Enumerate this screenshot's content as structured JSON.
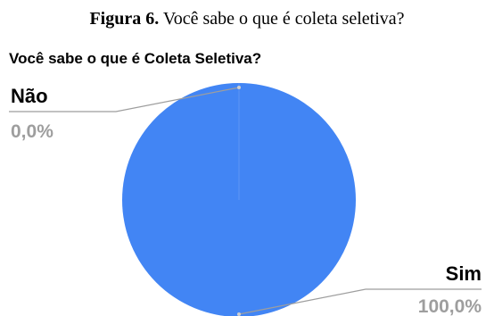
{
  "figure_caption": {
    "label": "Figura 6.",
    "text": "Você sabe o que é coleta seletiva?"
  },
  "chart_data": {
    "type": "pie",
    "title": "Você sabe o que é Coleta Seletiva?",
    "slices": [
      {
        "label": "Não",
        "value": 0.0,
        "percent_label": "0,0%",
        "color": "#4285f4"
      },
      {
        "label": "Sim",
        "value": 100.0,
        "percent_label": "100,0%",
        "color": "#4285f4"
      }
    ],
    "colors": {
      "slice": "#4285f4",
      "leader_line": "#9e9e9e",
      "percent_text": "#9e9e9e"
    }
  }
}
